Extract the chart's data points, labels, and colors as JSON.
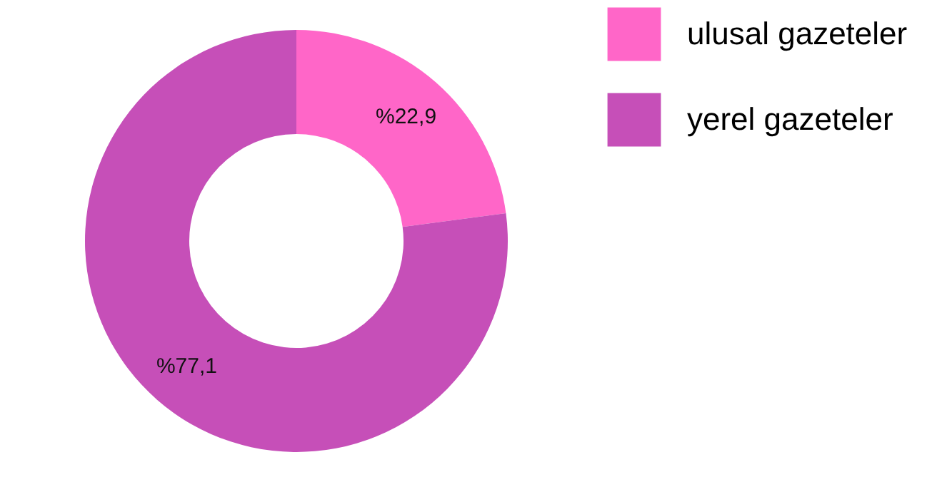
{
  "chart_data": {
    "type": "donut",
    "categories": [
      "ulusal gazeteler",
      "yerel gazeteler"
    ],
    "values": [
      22.9,
      77.1
    ],
    "colors": [
      "#ff66c8",
      "#c64fb8"
    ],
    "value_labels": [
      "%22,9",
      "%77,1"
    ],
    "legend": "right"
  }
}
